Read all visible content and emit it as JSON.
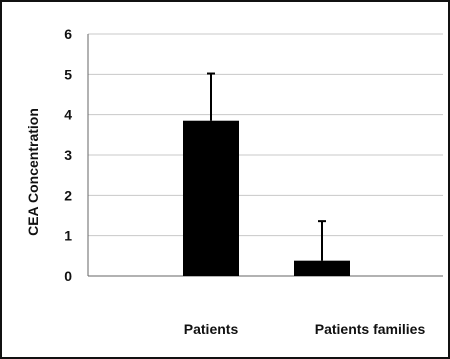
{
  "chart_data": {
    "type": "bar",
    "title": "",
    "xlabel": "",
    "ylabel": "CEA Concentration",
    "categories": [
      "Patients",
      "Patients families"
    ],
    "series": [
      {
        "values": [
          3.85,
          0.38
        ],
        "error": [
          1.17,
          0.98
        ]
      }
    ],
    "ylim": [
      0,
      6
    ],
    "y_ticks": [
      "0",
      "1",
      "2",
      "3",
      "4",
      "5",
      "6"
    ],
    "grid": true,
    "legend": "none",
    "colors": {
      "bar": "#000000",
      "gridline": "#c8c8c8",
      "axis": "#666666",
      "text": "#111111"
    }
  }
}
